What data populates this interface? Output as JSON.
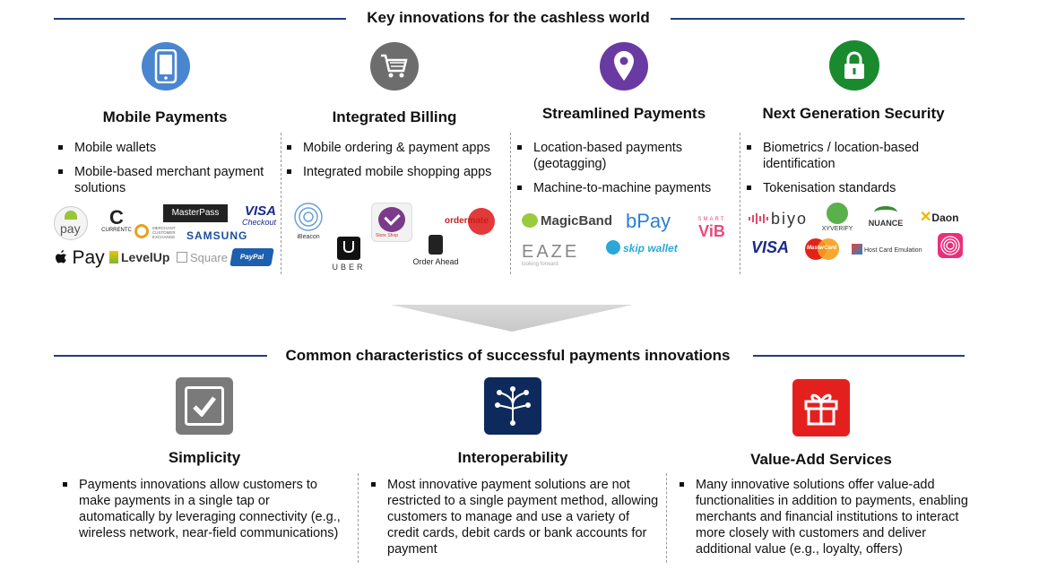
{
  "top_title": "Key innovations for the cashless world",
  "bottom_title": "Common characteristics of successful payments innovations",
  "colors": {
    "rule": "#1f3f7a",
    "mobile": "#4a86cf",
    "billing": "#6d6d6d",
    "streamlined": "#6a3aa3",
    "security": "#1a8a2e",
    "simplicity": "#7a7a7a",
    "interop": "#0e2a5c",
    "value": "#e4201f"
  },
  "columns": [
    {
      "icon": "mobile-phone-icon",
      "title": "Mobile Payments",
      "bullets": [
        "Mobile wallets",
        "Mobile-based merchant payment solutions"
      ]
    },
    {
      "icon": "shopping-cart-icon",
      "title": "Integrated Billing",
      "bullets": [
        "Mobile ordering & payment apps",
        "Integrated mobile shopping apps"
      ]
    },
    {
      "icon": "location-pin-icon",
      "title": "Streamlined Payments",
      "bullets": [
        "Location-based payments (geotagging)",
        "Machine-to-machine payments"
      ]
    },
    {
      "icon": "padlock-icon",
      "title": "Next Generation Security",
      "bullets": [
        "Biometrics / location-based identification",
        "Tokenisation standards"
      ]
    }
  ],
  "logos": {
    "mobile": {
      "android_pay": "pay",
      "currentc": "CURRENTC",
      "masterpass": "MasterPass",
      "visa_checkout_1": "VISA",
      "visa_checkout_2": "Checkout",
      "samsung": "SAMSUNG",
      "mcx": "MERCHANT CUSTOMER EXCHANGE",
      "apple_pay": "Pay",
      "levelup": "LevelUp",
      "square": "Square",
      "paypal": "PayPal"
    },
    "billing": {
      "ibeacon": "iBeacon",
      "starbucks": "Store Shop",
      "uber": "UBER",
      "order_ahead": "Order Ahead",
      "ordermate": "ordermate"
    },
    "streamlined": {
      "magicband": "MagicBand",
      "bpay": "bPay",
      "smart": "SMART",
      "vib": "ViB",
      "eaze": "EAZE",
      "eaze_sub": "looking forward",
      "skip": "skip wallet"
    },
    "security": {
      "biyo": "biyo",
      "xyverify": "XYVERIFY",
      "nuance": "NUANCE",
      "daon": "Daon",
      "visa": "VISA",
      "mastercard": "MasterCard",
      "hce": "Host Card Emulation"
    }
  },
  "characteristics": [
    {
      "icon": "checkmark-icon",
      "title": "Simplicity",
      "text": "Payments innovations allow customers to make payments in a single tap or automatically by leveraging connectivity (e.g., wireless network, near-field communications)"
    },
    {
      "icon": "network-branch-icon",
      "title": "Interoperability",
      "text": "Most innovative payment solutions are not restricted to a single payment method, allowing customers to manage and use a variety of credit cards, debit cards or bank accounts for payment"
    },
    {
      "icon": "gift-icon",
      "title": "Value-Add Services",
      "text": "Many innovative solutions offer value-add functionalities in addition to payments, enabling merchants and financial institutions to interact more closely with customers and deliver additional value (e.g., loyalty, offers)"
    }
  ]
}
